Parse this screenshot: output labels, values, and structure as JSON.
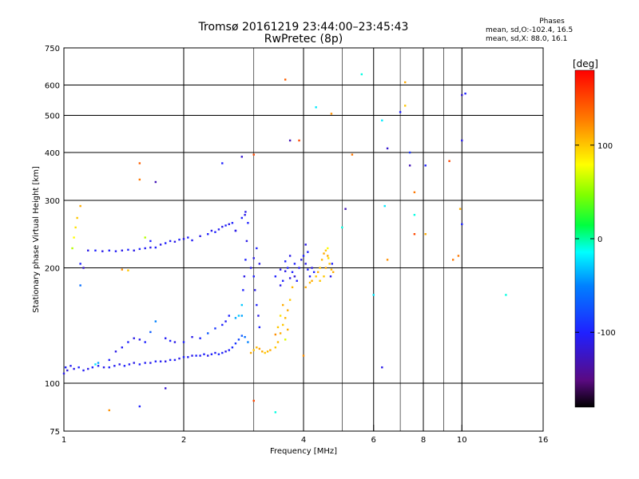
{
  "page": {
    "title_line1": "Tromsø 20161219 23:44:00–23:45:43",
    "title_line2": "RwPretec (8p)"
  },
  "phases_box": {
    "heading": "Phases",
    "line1": "mean, sd,O:-102.4, 16.5",
    "line2": "mean, sd,X:  88.0, 16.1"
  },
  "colorbar": {
    "unit_label": "[deg]",
    "range": [
      -180,
      180
    ],
    "ticks": [
      {
        "value": 100,
        "label": "100"
      },
      {
        "value": 0,
        "label": "0"
      },
      {
        "value": -100,
        "label": "-100"
      }
    ]
  },
  "chart_data": {
    "type": "scatter",
    "xlabel": "Frequency [MHz]",
    "ylabel": "Stationary phase Virtual Height [km]",
    "x_scale": "log",
    "y_scale": "log",
    "xlim": [
      1,
      16
    ],
    "ylim": [
      75,
      750
    ],
    "grid": true,
    "x_ticks": [
      {
        "v": 1,
        "l": "1"
      },
      {
        "v": 2,
        "l": "2"
      },
      {
        "v": 4,
        "l": "4"
      },
      {
        "v": 6,
        "l": "6"
      },
      {
        "v": 8,
        "l": "8"
      },
      {
        "v": 10,
        "l": "10"
      },
      {
        "v": 16,
        "l": "16"
      }
    ],
    "x_grid": [
      1,
      2,
      3,
      4,
      5,
      6,
      7,
      8,
      9,
      10,
      16
    ],
    "x_grid_major": [
      2,
      4,
      6,
      8,
      10
    ],
    "y_ticks": [
      {
        "v": 75,
        "l": "75"
      },
      {
        "v": 100,
        "l": "100"
      },
      {
        "v": 200,
        "l": "200"
      },
      {
        "v": 300,
        "l": "300"
      },
      {
        "v": 400,
        "l": "400"
      },
      {
        "v": 500,
        "l": "500"
      },
      {
        "v": 600,
        "l": "600"
      },
      {
        "v": 750,
        "l": "750"
      }
    ],
    "y_grid": [
      100,
      200,
      300,
      400,
      500,
      600
    ],
    "points": [
      [
        1.0,
        106,
        -110
      ],
      [
        1.01,
        110,
        -100
      ],
      [
        1.02,
        108,
        -115
      ],
      [
        1.04,
        111,
        -105
      ],
      [
        1.06,
        109,
        -110
      ],
      [
        1.09,
        110,
        -100
      ],
      [
        1.12,
        108,
        -105
      ],
      [
        1.15,
        109,
        -110
      ],
      [
        1.18,
        110,
        -100
      ],
      [
        1.22,
        111,
        -105
      ],
      [
        1.26,
        110,
        -110
      ],
      [
        1.3,
        110,
        -100
      ],
      [
        1.34,
        111,
        -105
      ],
      [
        1.38,
        112,
        -110
      ],
      [
        1.42,
        111,
        -100
      ],
      [
        1.46,
        112,
        -105
      ],
      [
        1.5,
        113,
        -110
      ],
      [
        1.55,
        112,
        -100
      ],
      [
        1.6,
        113,
        -105
      ],
      [
        1.65,
        113,
        -110
      ],
      [
        1.7,
        114,
        -100
      ],
      [
        1.75,
        114,
        -105
      ],
      [
        1.8,
        114,
        -110
      ],
      [
        1.85,
        115,
        -100
      ],
      [
        1.9,
        115,
        -105
      ],
      [
        1.95,
        116,
        -110
      ],
      [
        2.0,
        117,
        -100
      ],
      [
        2.05,
        117,
        -105
      ],
      [
        2.1,
        118,
        -110
      ],
      [
        2.15,
        118,
        -100
      ],
      [
        2.2,
        118,
        -105
      ],
      [
        2.25,
        119,
        -100
      ],
      [
        2.3,
        118,
        -110
      ],
      [
        2.35,
        119,
        -100
      ],
      [
        2.4,
        120,
        -105
      ],
      [
        2.45,
        119,
        -95
      ],
      [
        2.5,
        120,
        -100
      ],
      [
        2.55,
        121,
        -110
      ],
      [
        2.6,
        122,
        -100
      ],
      [
        2.65,
        124,
        -95
      ],
      [
        2.7,
        127,
        -90
      ],
      [
        2.75,
        130,
        -80
      ],
      [
        2.8,
        133,
        -70
      ],
      [
        2.85,
        132,
        -60
      ],
      [
        2.9,
        128,
        -50
      ],
      [
        1.2,
        112,
        -20
      ],
      [
        1.22,
        113,
        -40
      ],
      [
        1.3,
        115,
        -100
      ],
      [
        1.35,
        121,
        -110
      ],
      [
        1.4,
        124,
        -105
      ],
      [
        1.45,
        128,
        -100
      ],
      [
        1.5,
        131,
        -110
      ],
      [
        1.55,
        130,
        -110
      ],
      [
        1.6,
        128,
        -100
      ],
      [
        1.65,
        136,
        -70
      ],
      [
        1.7,
        145,
        -50
      ],
      [
        1.8,
        131,
        -105
      ],
      [
        1.85,
        129,
        -100
      ],
      [
        1.9,
        128,
        -110
      ],
      [
        2.0,
        128,
        -100
      ],
      [
        2.1,
        132,
        -110
      ],
      [
        2.2,
        131,
        -100
      ],
      [
        2.3,
        135,
        -70
      ],
      [
        2.4,
        139,
        -90
      ],
      [
        2.5,
        142,
        -100
      ],
      [
        2.55,
        145,
        -105
      ],
      [
        2.6,
        150,
        -100
      ],
      [
        2.7,
        148,
        -40
      ],
      [
        2.75,
        150,
        -30
      ],
      [
        2.8,
        160,
        -30
      ],
      [
        2.82,
        175,
        -100
      ],
      [
        2.84,
        190,
        -110
      ],
      [
        2.86,
        210,
        -100
      ],
      [
        2.88,
        235,
        -110
      ],
      [
        2.9,
        262,
        -100
      ],
      [
        2.86,
        280,
        -110
      ],
      [
        2.95,
        200,
        -110
      ],
      [
        3.0,
        190,
        -100
      ],
      [
        3.02,
        175,
        -110
      ],
      [
        3.05,
        160,
        -100
      ],
      [
        3.08,
        150,
        -110
      ],
      [
        3.1,
        140,
        -100
      ],
      [
        3.0,
        212,
        -110
      ],
      [
        3.05,
        225,
        -100
      ],
      [
        3.1,
        205,
        -110
      ],
      [
        2.95,
        120,
        110
      ],
      [
        3.0,
        122,
        100
      ],
      [
        3.05,
        124,
        105
      ],
      [
        3.1,
        123,
        115
      ],
      [
        3.15,
        121,
        110
      ],
      [
        3.2,
        120,
        100
      ],
      [
        3.25,
        121,
        105
      ],
      [
        3.3,
        122,
        110
      ],
      [
        3.4,
        124,
        100
      ],
      [
        3.45,
        128,
        105
      ],
      [
        3.5,
        135,
        110
      ],
      [
        3.55,
        142,
        100
      ],
      [
        3.6,
        148,
        105
      ],
      [
        3.65,
        155,
        110
      ],
      [
        3.7,
        165,
        100
      ],
      [
        3.75,
        178,
        105
      ],
      [
        3.8,
        190,
        110
      ],
      [
        3.4,
        134,
        120
      ],
      [
        3.45,
        140,
        100
      ],
      [
        3.5,
        150,
        90
      ],
      [
        3.55,
        160,
        110
      ],
      [
        3.6,
        130,
        70
      ],
      [
        3.65,
        138,
        110
      ],
      [
        3.4,
        190,
        -100
      ],
      [
        3.5,
        198,
        -110
      ],
      [
        3.55,
        185,
        -100
      ],
      [
        3.6,
        196,
        -110
      ],
      [
        3.65,
        200,
        -100
      ],
      [
        3.7,
        188,
        -110
      ],
      [
        3.75,
        195,
        -100
      ],
      [
        3.8,
        190,
        -110
      ],
      [
        3.85,
        185,
        -100
      ],
      [
        3.9,
        200,
        -105
      ],
      [
        3.95,
        210,
        -110
      ],
      [
        4.0,
        215,
        -100
      ],
      [
        4.05,
        205,
        -110
      ],
      [
        4.1,
        198,
        -100
      ],
      [
        4.15,
        190,
        -105
      ],
      [
        4.2,
        200,
        -110
      ],
      [
        4.25,
        195,
        -100
      ],
      [
        3.5,
        180,
        -110
      ],
      [
        3.6,
        208,
        -100
      ],
      [
        3.7,
        215,
        -110
      ],
      [
        3.8,
        205,
        -100
      ],
      [
        4.05,
        230,
        -110
      ],
      [
        4.1,
        220,
        -100
      ],
      [
        4.2,
        185,
        110
      ],
      [
        4.3,
        190,
        100
      ],
      [
        4.35,
        195,
        110
      ],
      [
        4.4,
        200,
        100
      ],
      [
        4.45,
        210,
        105
      ],
      [
        4.5,
        218,
        110
      ],
      [
        4.55,
        222,
        100
      ],
      [
        4.6,
        215,
        110
      ],
      [
        4.65,
        205,
        100
      ],
      [
        4.7,
        198,
        105
      ],
      [
        4.75,
        195,
        110
      ],
      [
        4.5,
        190,
        100
      ],
      [
        4.55,
        200,
        110
      ],
      [
        4.6,
        225,
        80
      ],
      [
        4.62,
        212,
        90
      ],
      [
        4.68,
        190,
        -110
      ],
      [
        4.72,
        205,
        -100
      ],
      [
        4.4,
        185,
        100
      ],
      [
        4.05,
        178,
        110
      ],
      [
        4.15,
        183,
        105
      ],
      [
        1.05,
        225,
        60
      ],
      [
        1.06,
        240,
        80
      ],
      [
        1.07,
        255,
        90
      ],
      [
        1.08,
        270,
        100
      ],
      [
        1.1,
        290,
        110
      ],
      [
        1.1,
        205,
        -100
      ],
      [
        1.12,
        200,
        -120
      ],
      [
        1.1,
        180,
        -60
      ],
      [
        1.15,
        222,
        -110
      ],
      [
        1.2,
        222,
        -100
      ],
      [
        1.25,
        221,
        -110
      ],
      [
        1.3,
        222,
        -100
      ],
      [
        1.35,
        221,
        -105
      ],
      [
        1.4,
        222,
        -110
      ],
      [
        1.45,
        223,
        -100
      ],
      [
        1.5,
        222,
        -110
      ],
      [
        1.55,
        224,
        -100
      ],
      [
        1.6,
        225,
        -105
      ],
      [
        1.65,
        226,
        -110
      ],
      [
        1.7,
        226,
        -100
      ],
      [
        1.75,
        230,
        -110
      ],
      [
        1.8,
        232,
        -100
      ],
      [
        1.85,
        235,
        -105
      ],
      [
        1.9,
        234,
        -110
      ],
      [
        1.95,
        237,
        -100
      ],
      [
        2.0,
        238,
        -110
      ],
      [
        2.05,
        240,
        -100
      ],
      [
        2.1,
        236,
        -105
      ],
      [
        2.2,
        242,
        -110
      ],
      [
        2.3,
        245,
        -100
      ],
      [
        2.35,
        250,
        -110
      ],
      [
        2.4,
        248,
        -100
      ],
      [
        2.45,
        252,
        -105
      ],
      [
        2.5,
        256,
        -110
      ],
      [
        2.55,
        258,
        -100
      ],
      [
        2.6,
        260,
        -110
      ],
      [
        2.65,
        262,
        -100
      ],
      [
        2.7,
        250,
        -110
      ],
      [
        2.8,
        270,
        -100
      ],
      [
        2.85,
        275,
        -110
      ],
      [
        1.6,
        240,
        60
      ],
      [
        1.65,
        235,
        -100
      ],
      [
        1.4,
        198,
        120
      ],
      [
        1.45,
        197,
        100
      ],
      [
        1.55,
        375,
        140
      ],
      [
        1.55,
        340,
        130
      ],
      [
        1.7,
        335,
        -130
      ],
      [
        2.5,
        375,
        -100
      ],
      [
        2.8,
        390,
        -120
      ],
      [
        3.0,
        395,
        150
      ],
      [
        3.6,
        620,
        140
      ],
      [
        3.7,
        430,
        -130
      ],
      [
        3.9,
        430,
        150
      ],
      [
        4.3,
        525,
        -20
      ],
      [
        4.7,
        505,
        120
      ],
      [
        5.1,
        285,
        -130
      ],
      [
        5.0,
        255,
        -10
      ],
      [
        5.6,
        640,
        -10
      ],
      [
        5.3,
        395,
        130
      ],
      [
        6.0,
        170,
        -20
      ],
      [
        6.3,
        485,
        -20
      ],
      [
        6.5,
        410,
        -120
      ],
      [
        6.4,
        290,
        -20
      ],
      [
        6.3,
        110,
        -110
      ],
      [
        6.5,
        210,
        120
      ],
      [
        7.0,
        510,
        -100
      ],
      [
        7.2,
        530,
        100
      ],
      [
        7.2,
        610,
        110
      ],
      [
        7.4,
        400,
        -90
      ],
      [
        7.4,
        370,
        -130
      ],
      [
        7.6,
        315,
        130
      ],
      [
        7.6,
        275,
        -10
      ],
      [
        7.6,
        245,
        150
      ],
      [
        8.1,
        370,
        -100
      ],
      [
        8.1,
        245,
        110
      ],
      [
        9.3,
        380,
        150
      ],
      [
        9.5,
        210,
        130
      ],
      [
        9.8,
        215,
        130
      ],
      [
        9.9,
        285,
        110
      ],
      [
        10.0,
        260,
        -100
      ],
      [
        10.0,
        430,
        -110
      ],
      [
        10.0,
        565,
        -120
      ],
      [
        10.2,
        570,
        -100
      ],
      [
        12.9,
        170,
        -10
      ],
      [
        3.4,
        84,
        -10
      ],
      [
        3.0,
        90,
        150
      ],
      [
        1.3,
        85,
        120
      ],
      [
        1.55,
        87,
        -100
      ],
      [
        1.8,
        97,
        -120
      ],
      [
        2.8,
        150,
        -40
      ],
      [
        4.0,
        118,
        120
      ],
      [
        2.7,
        250,
        -110
      ]
    ]
  }
}
